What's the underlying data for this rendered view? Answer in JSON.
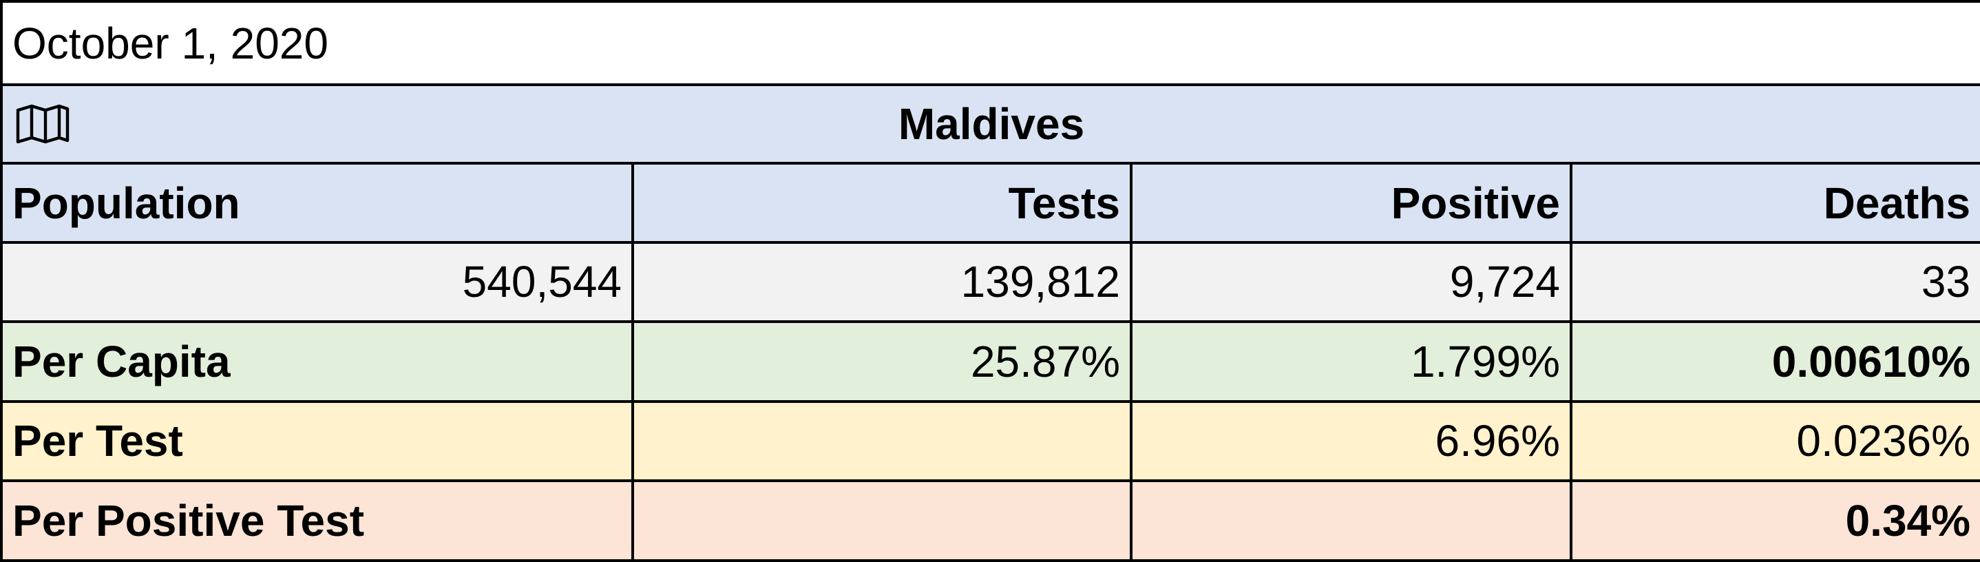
{
  "date": "October 1, 2020",
  "country": "Maldives",
  "columns": [
    "Population",
    "Tests",
    "Positive",
    "Deaths"
  ],
  "counts": [
    "540,544",
    "139,812",
    "9,724",
    "33"
  ],
  "rates": [
    {
      "label": "Per Capita",
      "tests": "25.87%",
      "positive": "1.799%",
      "deaths": "0.00610%"
    },
    {
      "label": "Per Test",
      "positive": "6.96%",
      "deaths": "0.0236%"
    },
    {
      "label": "Per Positive Test",
      "deaths": "0.34%"
    }
  ]
}
